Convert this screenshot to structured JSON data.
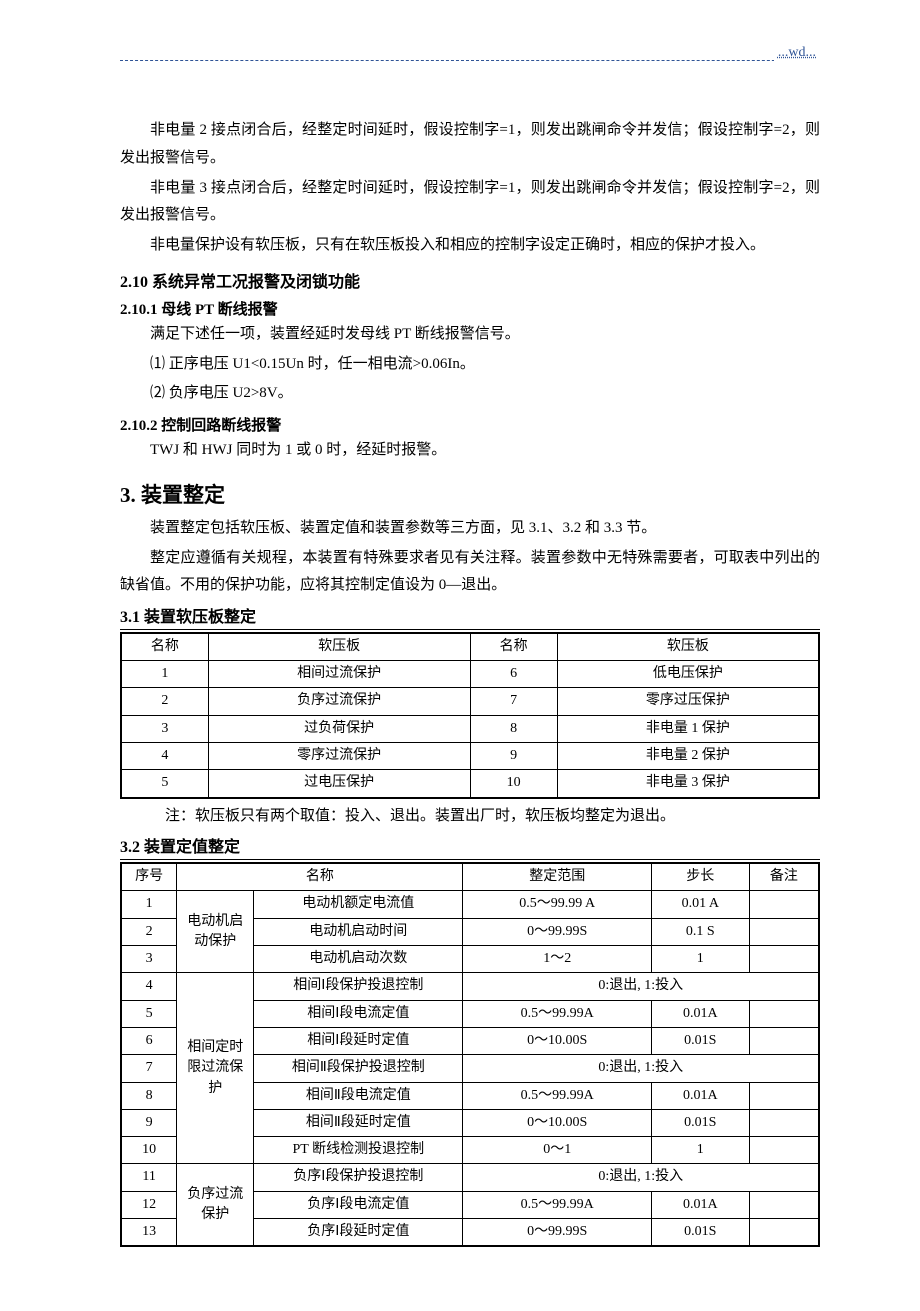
{
  "header": {
    "link": "...wd..."
  },
  "body": {
    "p1": "非电量 2 接点闭合后，经整定时间延时，假设控制字=1，则发出跳闸命令并发信；假设控制字=2，则发出报警信号。",
    "p2": "非电量 3 接点闭合后，经整定时间延时，假设控制字=1，则发出跳闸命令并发信；假设控制字=2，则发出报警信号。",
    "p3": "非电量保护设有软压板，只有在软压板投入和相应的控制字设定正确时，相应的保护才投入。",
    "h210": "2.10  系统异常工况报警及闭锁功能",
    "h2101": "2.10.1  母线 PT 断线报警",
    "p2101a": "满足下述任一项，装置经延时发母线 PT 断线报警信号。",
    "p2101b": "⑴  正序电压 U1<0.15Un 时，任一相电流>0.06In。",
    "p2101c": "⑵  负序电压 U2>8V。",
    "h2102": "2.10.2  控制回路断线报警",
    "p2102a": "TWJ 和 HWJ 同时为 1 或 0 时，经延时报警。",
    "h3": "3.  装置整定",
    "p3a": "装置整定包括软压板、装置定值和装置参数等三方面，见 3.1、3.2 和 3.3 节。",
    "p3b": "整定应遵循有关规程，本装置有特殊要求者见有关注释。装置参数中无特殊需要者，可取表中列出的缺省值。不用的保护功能，应将其控制定值设为 0—退出。",
    "h31": "3.1  装置软压板整定",
    "h32": "3.2  装置定值整定",
    "note_t1": "注：软压板只有两个取值：投入、退出。装置出厂时，软压板均整定为退出。"
  },
  "table1": {
    "cols": [
      "名称",
      "软压板",
      "名称",
      "软压板"
    ],
    "colwidths_pct": [
      12.5,
      37.5,
      12.5,
      37.5
    ],
    "rows": [
      [
        "1",
        "相间过流保护",
        "6",
        "低电压保护"
      ],
      [
        "2",
        "负序过流保护",
        "7",
        "零序过压保护"
      ],
      [
        "3",
        "过负荷保护",
        "8",
        "非电量 1 保护"
      ],
      [
        "4",
        "零序过流保护",
        "9",
        "非电量 2 保护"
      ],
      [
        "5",
        "过电压保护",
        "10",
        "非电量 3 保护"
      ]
    ]
  },
  "table2": {
    "cols": [
      "序号",
      "名称",
      "名称2",
      "整定范围",
      "步长",
      "备注"
    ],
    "header": {
      "c0": "序号",
      "c1": "名称",
      "c3": "整定范围",
      "c4": "步长",
      "c5": "备注"
    },
    "colwidths_pct": [
      8,
      11,
      30,
      27,
      14,
      10
    ],
    "groups": [
      {
        "label": "电动机启动保护",
        "rowspan": 3
      },
      {
        "label": "相间定时限过流保护",
        "rowspan": 7
      },
      {
        "label": "负序过流保护",
        "rowspan": 3
      }
    ],
    "rows": [
      {
        "n": "1",
        "name": "电动机额定电流值",
        "range": "0.5～99.99 A",
        "step": "0.01 A",
        "note": ""
      },
      {
        "n": "2",
        "name": "电动机启动时间",
        "range": "0～99.99S",
        "step": "0.1 S",
        "note": ""
      },
      {
        "n": "3",
        "name": "电动机启动次数",
        "range": "1～2",
        "step": "1",
        "note": ""
      },
      {
        "n": "4",
        "name": "相间Ⅰ段保护投退控制",
        "range": "0:退出, 1:投入",
        "merged": true
      },
      {
        "n": "5",
        "name": "相间Ⅰ段电流定值",
        "range": "0.5～99.99A",
        "step": "0.01A",
        "note": ""
      },
      {
        "n": "6",
        "name": "相间Ⅰ段延时定值",
        "range": "0～10.00S",
        "step": "0.01S",
        "note": ""
      },
      {
        "n": "7",
        "name": "相间Ⅱ段保护投退控制",
        "range": "0:退出, 1:投入",
        "merged": true
      },
      {
        "n": "8",
        "name": "相间Ⅱ段电流定值",
        "range": "0.5～99.99A",
        "step": "0.01A",
        "note": ""
      },
      {
        "n": "9",
        "name": "相间Ⅱ段延时定值",
        "range": "0～10.00S",
        "step": "0.01S",
        "note": ""
      },
      {
        "n": "10",
        "name": "PT 断线检测投退控制",
        "range": "0～1",
        "step": "1",
        "note": ""
      },
      {
        "n": "11",
        "name": "负序Ⅰ段保护投退控制",
        "range": "0:退出, 1:投入",
        "merged": true
      },
      {
        "n": "12",
        "name": "负序Ⅰ段电流定值",
        "range": "0.5～99.99A",
        "step": "0.01A",
        "note": ""
      },
      {
        "n": "13",
        "name": "负序Ⅰ段延时定值",
        "range": "0～99.99S",
        "step": "0.01S",
        "note": ""
      }
    ]
  },
  "colors": {
    "text": "#000000",
    "link": "#2f5496",
    "dashline": "#2f5496",
    "border": "#000000",
    "bg": "#ffffff"
  },
  "fonts": {
    "body_pt": 15,
    "h1_pt": 21,
    "h2_pt": 16,
    "h3_pt": 15,
    "table_pt": 14
  }
}
